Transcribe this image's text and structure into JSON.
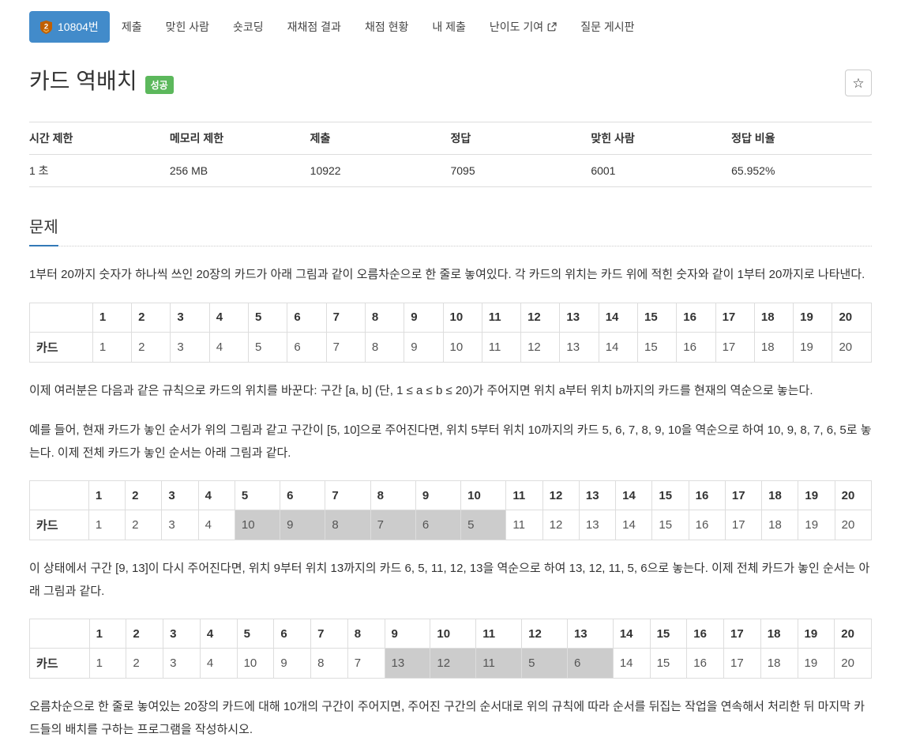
{
  "colors": {
    "accent_blue": "#428bca",
    "success_green": "#5cb85c",
    "highlight_gray": "#cccccc",
    "border_gray": "#dddddd",
    "tier_bronze": "#ad5600",
    "heading_underline_blue": "#337ab7"
  },
  "nav": {
    "problem_tab": {
      "tier_icon": "bronze-2-shield",
      "tier_number": "2",
      "label": "10804번"
    },
    "tabs": [
      {
        "label": "제출",
        "external": false
      },
      {
        "label": "맞힌 사람",
        "external": false
      },
      {
        "label": "숏코딩",
        "external": false
      },
      {
        "label": "재채점 결과",
        "external": false
      },
      {
        "label": "채점 현황",
        "external": false
      },
      {
        "label": "내 제출",
        "external": false
      },
      {
        "label": "난이도 기여",
        "external": true
      },
      {
        "label": "질문 게시판",
        "external": false
      }
    ]
  },
  "header": {
    "title": "카드 역배치",
    "status_badge": "성공",
    "star_icon": "☆"
  },
  "info_table": {
    "headers": [
      "시간 제한",
      "메모리 제한",
      "제출",
      "정답",
      "맞힌 사람",
      "정답 비율"
    ],
    "values": [
      "1 초",
      "256 MB",
      "10922",
      "7095",
      "6001",
      "65.952%"
    ]
  },
  "problem": {
    "heading": "문제",
    "p1": "1부터 20까지 숫자가 하나씩 쓰인 20장의 카드가 아래 그림과 같이 오름차순으로 한 줄로 놓여있다. 각 카드의 위치는 카드 위에 적힌 숫자와 같이 1부터 20까지로 나타낸다.",
    "p2": "이제 여러분은 다음과 같은 규칙으로 카드의 위치를 바꾼다: 구간 [a, b] (단, 1 ≤ a ≤ b ≤ 20)가 주어지면 위치 a부터 위치 b까지의 카드를 현재의 역순으로 놓는다.",
    "p3": "예를 들어, 현재 카드가 놓인 순서가 위의 그림과 같고 구간이 [5, 10]으로 주어진다면, 위치 5부터 위치 10까지의 카드 5, 6, 7, 8, 9, 10을 역순으로 하여 10, 9, 8, 7, 6, 5로 놓는다. 이제 전체 카드가 놓인 순서는 아래 그림과 같다.",
    "p4": "이 상태에서 구간 [9, 13]이 다시 주어진다면, 위치 9부터 위치 13까지의 카드 6, 5, 11, 12, 13을 역순으로 하여 13, 12, 11, 5, 6으로 놓는다. 이제 전체 카드가 놓인 순서는 아래 그림과 같다.",
    "p5": "오름차순으로 한 줄로 놓여있는 20장의 카드에 대해 10개의 구간이 주어지면, 주어진 구간의 순서대로 위의 규칙에 따라 순서를 뒤집는 작업을 연속해서 처리한 뒤 마지막 카드들의 배치를 구하는 프로그램을 작성하시오."
  },
  "card_tables": [
    {
      "row_label": "카드",
      "positions": [
        1,
        2,
        3,
        4,
        5,
        6,
        7,
        8,
        9,
        10,
        11,
        12,
        13,
        14,
        15,
        16,
        17,
        18,
        19,
        20
      ],
      "values": [
        1,
        2,
        3,
        4,
        5,
        6,
        7,
        8,
        9,
        10,
        11,
        12,
        13,
        14,
        15,
        16,
        17,
        18,
        19,
        20
      ],
      "highlight_from": 0,
      "highlight_to": 0
    },
    {
      "row_label": "카드",
      "positions": [
        1,
        2,
        3,
        4,
        5,
        6,
        7,
        8,
        9,
        10,
        11,
        12,
        13,
        14,
        15,
        16,
        17,
        18,
        19,
        20
      ],
      "values": [
        1,
        2,
        3,
        4,
        10,
        9,
        8,
        7,
        6,
        5,
        11,
        12,
        13,
        14,
        15,
        16,
        17,
        18,
        19,
        20
      ],
      "highlight_from": 5,
      "highlight_to": 10
    },
    {
      "row_label": "카드",
      "positions": [
        1,
        2,
        3,
        4,
        5,
        6,
        7,
        8,
        9,
        10,
        11,
        12,
        13,
        14,
        15,
        16,
        17,
        18,
        19,
        20
      ],
      "values": [
        1,
        2,
        3,
        4,
        10,
        9,
        8,
        7,
        13,
        12,
        11,
        5,
        6,
        14,
        15,
        16,
        17,
        18,
        19,
        20
      ],
      "highlight_from": 9,
      "highlight_to": 13
    }
  ]
}
